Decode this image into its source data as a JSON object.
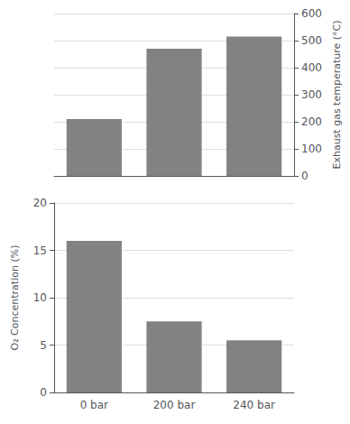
{
  "chart_data": [
    {
      "type": "bar",
      "categories": [
        null,
        null,
        null
      ],
      "values": [
        210,
        470,
        515
      ],
      "color": "#828282",
      "ylabel": "Exhaust gas temperature (°C)",
      "ylim": [
        0,
        600
      ],
      "yticks": [
        0,
        100,
        200,
        300,
        400,
        500,
        600
      ],
      "grid": true,
      "tick_labels": "y"
    },
    {
      "type": "bar",
      "categories": [
        "0 bar",
        "200 bar",
        "240 bar"
      ],
      "values": [
        16.0,
        7.5,
        5.5
      ],
      "color": "#828282",
      "ylabel": "O₂ Concentration (%)",
      "ylim": [
        0,
        20
      ],
      "yticks": [
        0,
        5,
        10,
        15,
        20
      ],
      "grid": true
    }
  ]
}
